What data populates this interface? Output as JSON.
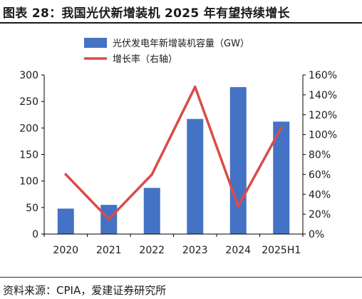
{
  "title": "图表 28：我国光伏新增装机 2025 年有望持续增长",
  "source": "资料来源：CPIA，爱建证券研究所",
  "colors": {
    "bar": "#4472C4",
    "line": "#D94C48",
    "axis": "#000000"
  },
  "chart_data": {
    "type": "bar",
    "categories": [
      "2020",
      "2021",
      "2022",
      "2023",
      "2024",
      "2025H1"
    ],
    "series": [
      {
        "name": "光伏发电年新增装机容量（GW）",
        "type": "bar",
        "axis": "left",
        "values": [
          48,
          55,
          87,
          217,
          277,
          212
        ]
      },
      {
        "name": "增长率（右轴）",
        "type": "line",
        "axis": "right",
        "values": [
          60,
          15,
          60,
          148,
          28,
          107
        ]
      }
    ],
    "ylim": [
      0,
      300
    ],
    "yticks": [
      "0",
      "50",
      "100",
      "150",
      "200",
      "250",
      "300"
    ],
    "y2lim": [
      0,
      160
    ],
    "y2ticks": [
      "0%",
      "20%",
      "40%",
      "60%",
      "80%",
      "100%",
      "120%",
      "140%",
      "160%"
    ],
    "legend": "top-center",
    "grid": false
  }
}
